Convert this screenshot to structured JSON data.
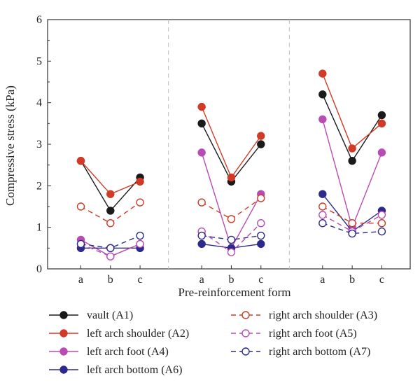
{
  "chart_data": {
    "type": "line",
    "xlabel": "Pre-reinforcement form",
    "ylabel": "Compressive stress (kPa)",
    "ylim": [
      0,
      6
    ],
    "yticks": [
      "0",
      "1",
      "2",
      "3",
      "4",
      "5",
      "6"
    ],
    "categories": [
      "a",
      "b",
      "c"
    ],
    "panel_count": 3,
    "series": [
      {
        "name": "vault (A1)",
        "color": "#1a1a1a",
        "filled": true,
        "dashed": false,
        "panels": [
          [
            2.6,
            1.4,
            2.2
          ],
          [
            3.5,
            2.1,
            3.0
          ],
          [
            4.2,
            2.6,
            3.7
          ]
        ]
      },
      {
        "name": "left arch shoulder (A2)",
        "color": "#d03a26",
        "filled": true,
        "dashed": false,
        "panels": [
          [
            2.6,
            1.8,
            2.1
          ],
          [
            3.9,
            2.2,
            3.2
          ],
          [
            4.7,
            2.9,
            3.5
          ]
        ]
      },
      {
        "name": "left arch foot (A4)",
        "color": "#b94bb4",
        "filled": true,
        "dashed": false,
        "panels": [
          [
            0.7,
            0.3,
            0.6
          ],
          [
            2.8,
            0.5,
            1.8
          ],
          [
            3.6,
            1.0,
            2.8
          ]
        ]
      },
      {
        "name": "left arch bottom (A6)",
        "color": "#2d2a8c",
        "filled": true,
        "dashed": false,
        "panels": [
          [
            0.5,
            0.5,
            0.5
          ],
          [
            0.6,
            0.5,
            0.6
          ],
          [
            1.8,
            0.9,
            1.4
          ]
        ]
      },
      {
        "name": "right arch shoulder (A3)",
        "color": "#d03a26",
        "filled": false,
        "dashed": true,
        "panels": [
          [
            1.5,
            1.1,
            1.6
          ],
          [
            1.6,
            1.2,
            1.7
          ],
          [
            1.5,
            1.1,
            1.1
          ]
        ]
      },
      {
        "name": "right arch foot (A5)",
        "color": "#b94bb4",
        "filled": false,
        "dashed": true,
        "panels": [
          [
            0.6,
            0.3,
            0.6
          ],
          [
            0.9,
            0.4,
            1.1
          ],
          [
            1.3,
            0.9,
            1.3
          ]
        ]
      },
      {
        "name": "right arch bottom (A7)",
        "color": "#2d2a8c",
        "filled": false,
        "dashed": true,
        "panels": [
          [
            0.6,
            0.5,
            0.8
          ],
          [
            0.8,
            0.7,
            0.8
          ],
          [
            1.1,
            0.85,
            0.9
          ]
        ]
      }
    ],
    "legend_order": [
      0,
      4,
      1,
      5,
      2,
      6,
      3
    ],
    "legend_placement": "below",
    "grid": false,
    "panel_separators": "dashed vertical"
  }
}
